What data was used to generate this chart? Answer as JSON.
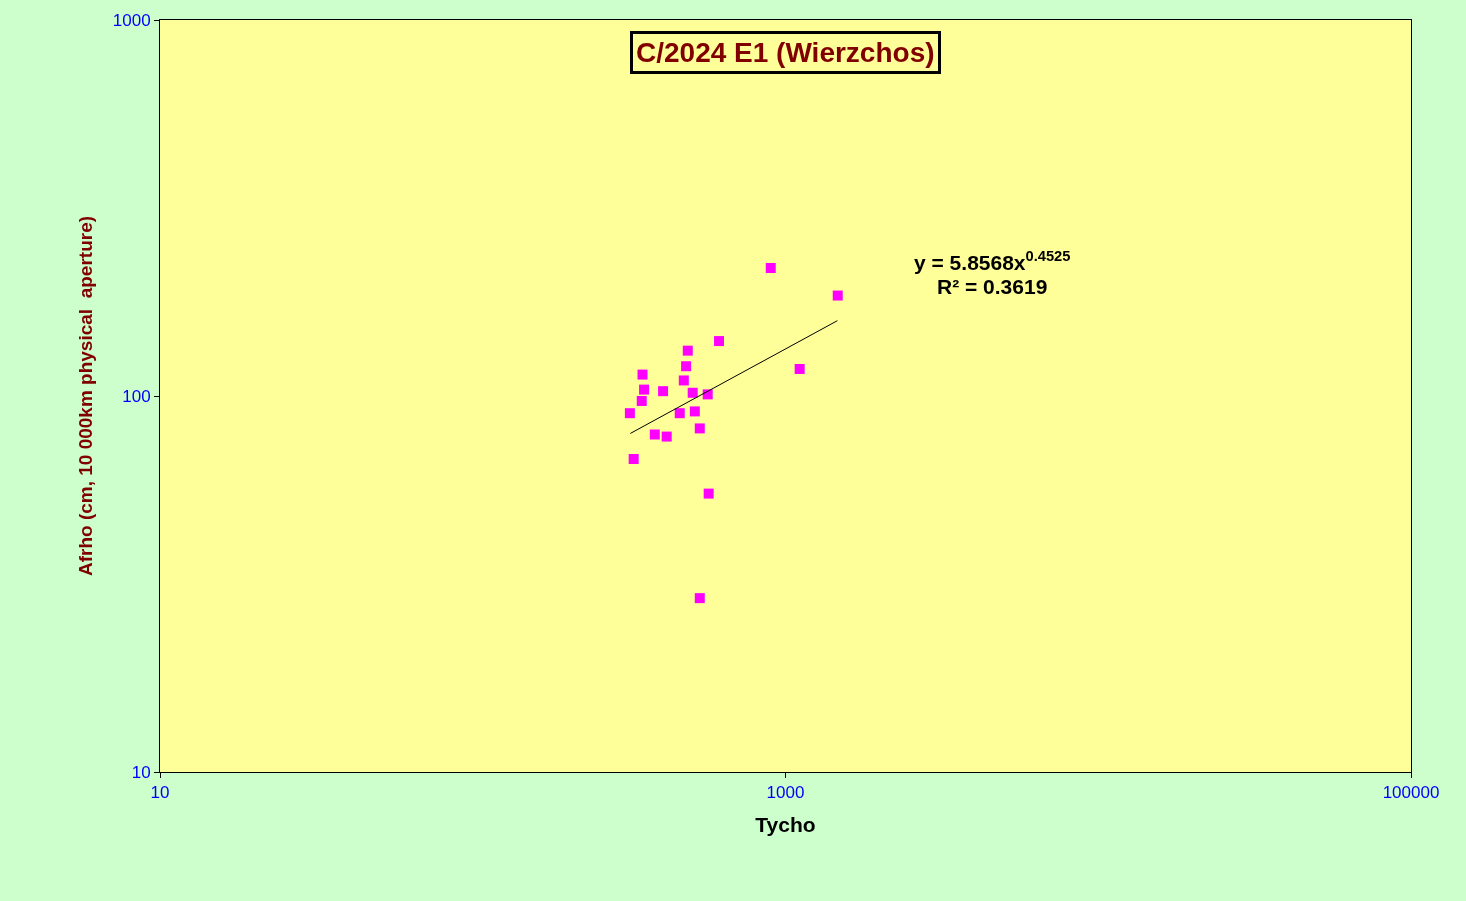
{
  "chart_data": {
    "type": "scatter",
    "title": "C/2024 E1 (Wierzchos)",
    "xlabel": "Tycho",
    "ylabel": "Afrho (cm, 10 000km physical  aperture)",
    "log": "xy",
    "grid": false,
    "marker": "square",
    "xlim": [
      10,
      100000
    ],
    "xticks": [
      10,
      1000,
      100000
    ],
    "ylim": [
      10,
      1000
    ],
    "yticks": [
      10,
      100,
      1000
    ],
    "annotations": [
      "y = 5.8568x$^{0.4525}$",
      "R² = 0.3619"
    ],
    "series": [
      {
        "color": "#ff00ff",
        "x": [
          897,
          1469,
          613,
          487,
          481,
          349,
          473,
          353,
          406,
          505,
          564,
          347,
          318,
          459,
          513,
          532,
          382,
          417,
          327,
          568,
          1110,
          532
        ],
        "values": [
          219,
          185,
          140,
          132,
          120,
          114,
          110,
          104,
          103,
          102,
          101,
          97,
          90,
          90,
          91,
          82,
          79,
          78,
          68,
          55,
          118,
          29
        ]
      },
      {
        "type": "line",
        "color": "#000000",
        "marker": "none",
        "x": [
          319,
          1465
        ],
        "values": [
          79.5,
          158.6
        ]
      }
    ]
  }
}
